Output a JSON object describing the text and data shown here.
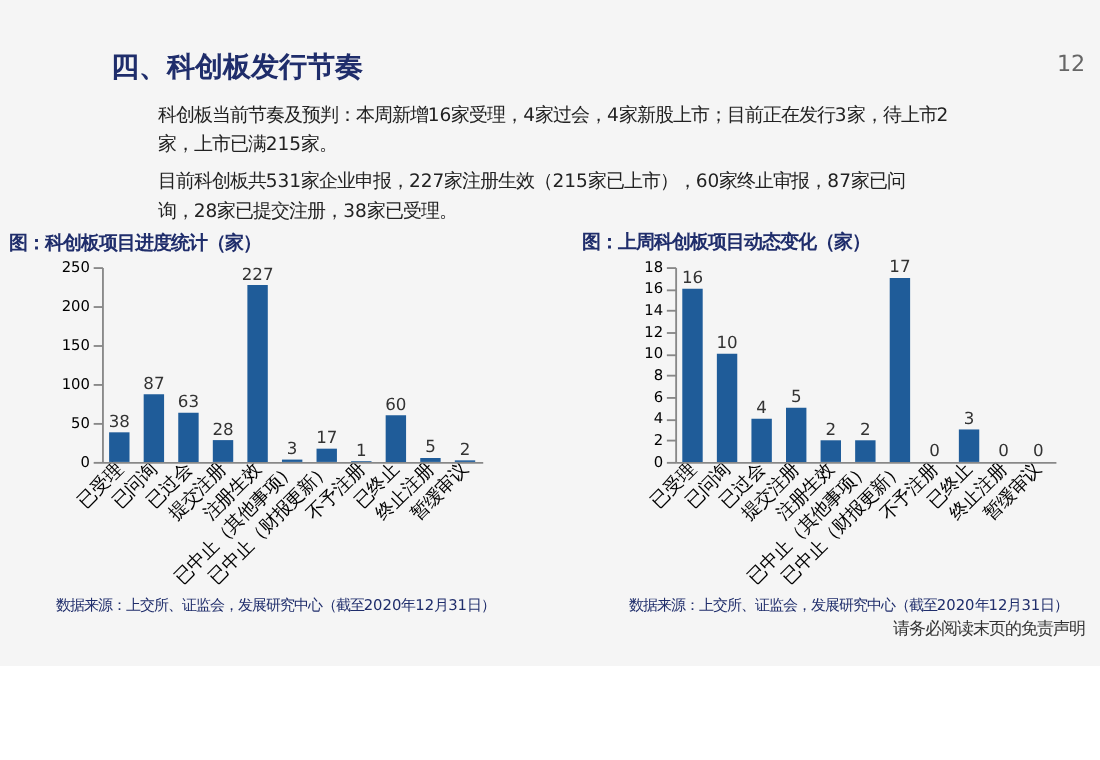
{
  "chart_data": [
    {
      "type": "bar",
      "title": "图：科创板项目进度统计（家）",
      "categories": [
        "已受理",
        "已问询",
        "已过会",
        "提交注册",
        "注册生效",
        "已中止（其他事项）",
        "已中止（财报更新）",
        "不予注册",
        "已终止",
        "终止注册",
        "暂缓审议"
      ],
      "values": [
        38,
        87,
        63,
        28,
        227,
        3,
        17,
        1,
        60,
        5,
        2
      ],
      "color": "#1f5c99",
      "ylim": [
        0,
        250
      ],
      "yticks": [
        0,
        50,
        100,
        150,
        200,
        250
      ],
      "grid": false,
      "data_labels": true,
      "annotations": [
        "四、科创板发行节奏",
        "12",
        "科创板当前节奏及预判：本周新增16家受理，4家过会，4家新股上市；目前正在发行3家，待上市2家，上市已满215家。",
        "目前科创板共531家企业申报，227家注册生效（215家已上市），60家终止审报，87家已问询，28家已提交注册，38家已受理。",
        "请务必阅读末页的免责声明",
        "数据来源：上交所、证监会，发展研究中心（截至2020年12月31日）"
      ]
    },
    {
      "type": "bar",
      "title": "图：上周科创板项目动态变化（家）",
      "categories": [
        "已受理",
        "已问询",
        "已过会",
        "提交注册",
        "注册生效",
        "已中止（其他事项）",
        "已中止（财报更新）",
        "不予注册",
        "已终止",
        "终止注册",
        "暂缓审议"
      ],
      "values": [
        16,
        10,
        4,
        5,
        2,
        2,
        17,
        0,
        3,
        0,
        0
      ],
      "color": "#1f5c99",
      "ylim": [
        0,
        18
      ],
      "yticks": [
        0,
        2,
        4,
        6,
        8,
        10,
        12,
        14,
        16,
        18
      ],
      "grid": false,
      "data_labels": true,
      "annotations": [
        "数据来源：上交所、证监会，发展研究中心（截至2020年12月31日）"
      ]
    }
  ]
}
